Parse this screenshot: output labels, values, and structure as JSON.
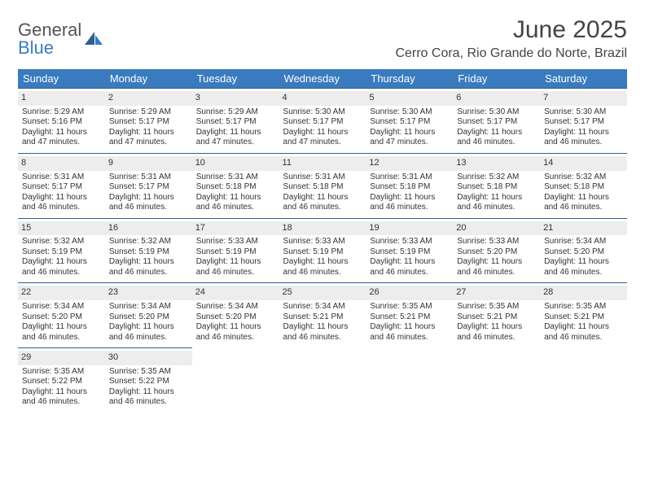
{
  "logo": {
    "word1": "General",
    "word2": "Blue"
  },
  "title": "June 2025",
  "location": "Cerro Cora, Rio Grande do Norte, Brazil",
  "header_color": "#3a7bbf",
  "day_headers": [
    "Sunday",
    "Monday",
    "Tuesday",
    "Wednesday",
    "Thursday",
    "Friday",
    "Saturday"
  ],
  "weeks": [
    [
      {
        "n": "1",
        "sr": "5:29 AM",
        "ss": "5:16 PM",
        "dl": "11 hours and 47 minutes."
      },
      {
        "n": "2",
        "sr": "5:29 AM",
        "ss": "5:17 PM",
        "dl": "11 hours and 47 minutes."
      },
      {
        "n": "3",
        "sr": "5:29 AM",
        "ss": "5:17 PM",
        "dl": "11 hours and 47 minutes."
      },
      {
        "n": "4",
        "sr": "5:30 AM",
        "ss": "5:17 PM",
        "dl": "11 hours and 47 minutes."
      },
      {
        "n": "5",
        "sr": "5:30 AM",
        "ss": "5:17 PM",
        "dl": "11 hours and 47 minutes."
      },
      {
        "n": "6",
        "sr": "5:30 AM",
        "ss": "5:17 PM",
        "dl": "11 hours and 46 minutes."
      },
      {
        "n": "7",
        "sr": "5:30 AM",
        "ss": "5:17 PM",
        "dl": "11 hours and 46 minutes."
      }
    ],
    [
      {
        "n": "8",
        "sr": "5:31 AM",
        "ss": "5:17 PM",
        "dl": "11 hours and 46 minutes."
      },
      {
        "n": "9",
        "sr": "5:31 AM",
        "ss": "5:17 PM",
        "dl": "11 hours and 46 minutes."
      },
      {
        "n": "10",
        "sr": "5:31 AM",
        "ss": "5:18 PM",
        "dl": "11 hours and 46 minutes."
      },
      {
        "n": "11",
        "sr": "5:31 AM",
        "ss": "5:18 PM",
        "dl": "11 hours and 46 minutes."
      },
      {
        "n": "12",
        "sr": "5:31 AM",
        "ss": "5:18 PM",
        "dl": "11 hours and 46 minutes."
      },
      {
        "n": "13",
        "sr": "5:32 AM",
        "ss": "5:18 PM",
        "dl": "11 hours and 46 minutes."
      },
      {
        "n": "14",
        "sr": "5:32 AM",
        "ss": "5:18 PM",
        "dl": "11 hours and 46 minutes."
      }
    ],
    [
      {
        "n": "15",
        "sr": "5:32 AM",
        "ss": "5:19 PM",
        "dl": "11 hours and 46 minutes."
      },
      {
        "n": "16",
        "sr": "5:32 AM",
        "ss": "5:19 PM",
        "dl": "11 hours and 46 minutes."
      },
      {
        "n": "17",
        "sr": "5:33 AM",
        "ss": "5:19 PM",
        "dl": "11 hours and 46 minutes."
      },
      {
        "n": "18",
        "sr": "5:33 AM",
        "ss": "5:19 PM",
        "dl": "11 hours and 46 minutes."
      },
      {
        "n": "19",
        "sr": "5:33 AM",
        "ss": "5:19 PM",
        "dl": "11 hours and 46 minutes."
      },
      {
        "n": "20",
        "sr": "5:33 AM",
        "ss": "5:20 PM",
        "dl": "11 hours and 46 minutes."
      },
      {
        "n": "21",
        "sr": "5:34 AM",
        "ss": "5:20 PM",
        "dl": "11 hours and 46 minutes."
      }
    ],
    [
      {
        "n": "22",
        "sr": "5:34 AM",
        "ss": "5:20 PM",
        "dl": "11 hours and 46 minutes."
      },
      {
        "n": "23",
        "sr": "5:34 AM",
        "ss": "5:20 PM",
        "dl": "11 hours and 46 minutes."
      },
      {
        "n": "24",
        "sr": "5:34 AM",
        "ss": "5:20 PM",
        "dl": "11 hours and 46 minutes."
      },
      {
        "n": "25",
        "sr": "5:34 AM",
        "ss": "5:21 PM",
        "dl": "11 hours and 46 minutes."
      },
      {
        "n": "26",
        "sr": "5:35 AM",
        "ss": "5:21 PM",
        "dl": "11 hours and 46 minutes."
      },
      {
        "n": "27",
        "sr": "5:35 AM",
        "ss": "5:21 PM",
        "dl": "11 hours and 46 minutes."
      },
      {
        "n": "28",
        "sr": "5:35 AM",
        "ss": "5:21 PM",
        "dl": "11 hours and 46 minutes."
      }
    ],
    [
      {
        "n": "29",
        "sr": "5:35 AM",
        "ss": "5:22 PM",
        "dl": "11 hours and 46 minutes."
      },
      {
        "n": "30",
        "sr": "5:35 AM",
        "ss": "5:22 PM",
        "dl": "11 hours and 46 minutes."
      },
      null,
      null,
      null,
      null,
      null
    ]
  ],
  "labels": {
    "sunrise": "Sunrise: ",
    "sunset": "Sunset: ",
    "daylight": "Daylight: "
  }
}
